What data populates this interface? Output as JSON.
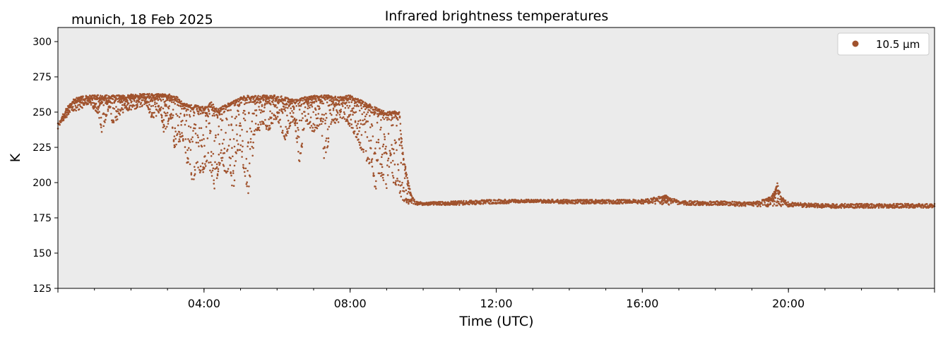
{
  "header": {
    "location_date": "munich, 18 Feb 2025"
  },
  "chart_data": {
    "type": "scatter",
    "title": "Infrared brightness temperatures",
    "xlabel": "Time (UTC)",
    "ylabel": "K",
    "ylim": [
      125,
      310
    ],
    "xlim_hours": [
      0,
      24
    ],
    "x_unit": "hours UTC",
    "x_ticks": [
      {
        "hour": 4,
        "label": "04:00"
      },
      {
        "hour": 8,
        "label": "08:00"
      },
      {
        "hour": 12,
        "label": "12:00"
      },
      {
        "hour": 16,
        "label": "16:00"
      },
      {
        "hour": 20,
        "label": "20:00"
      }
    ],
    "y_ticks": [
      125,
      150,
      175,
      200,
      225,
      250,
      275,
      300
    ],
    "grid": false,
    "background": "#ebebeb",
    "legend": {
      "placement": "top-right"
    },
    "series": [
      {
        "name": "10.5 µm",
        "color": "#a0522d",
        "upper_envelope": [
          [
            0.0,
            242
          ],
          [
            0.2,
            252
          ],
          [
            0.4,
            259
          ],
          [
            0.6,
            261
          ],
          [
            0.9,
            262
          ],
          [
            1.2,
            262
          ],
          [
            1.5,
            262
          ],
          [
            1.8,
            262
          ],
          [
            2.1,
            263
          ],
          [
            2.4,
            263
          ],
          [
            2.7,
            263
          ],
          [
            3.0,
            263
          ],
          [
            3.2,
            262
          ],
          [
            3.4,
            258
          ],
          [
            3.6,
            255
          ],
          [
            3.8,
            255
          ],
          [
            4.0,
            254
          ],
          [
            4.2,
            257
          ],
          [
            4.4,
            252
          ],
          [
            4.6,
            256
          ],
          [
            4.8,
            258
          ],
          [
            5.0,
            261
          ],
          [
            5.3,
            262
          ],
          [
            5.6,
            262
          ],
          [
            5.9,
            262
          ],
          [
            6.2,
            261
          ],
          [
            6.5,
            259
          ],
          [
            6.8,
            261
          ],
          [
            7.1,
            262
          ],
          [
            7.4,
            262
          ],
          [
            7.7,
            261
          ],
          [
            8.0,
            262
          ],
          [
            8.2,
            260
          ],
          [
            8.4,
            257
          ],
          [
            8.6,
            255
          ],
          [
            8.8,
            252
          ],
          [
            9.0,
            250
          ],
          [
            9.2,
            251
          ],
          [
            9.35,
            250
          ],
          [
            9.45,
            220
          ],
          [
            9.6,
            200
          ],
          [
            9.7,
            190
          ],
          [
            9.8,
            187
          ],
          [
            10.0,
            186
          ],
          [
            11.0,
            187
          ],
          [
            12.0,
            188
          ],
          [
            13.0,
            188
          ],
          [
            14.0,
            188
          ],
          [
            15.0,
            188
          ],
          [
            16.0,
            188
          ],
          [
            16.65,
            191
          ],
          [
            17.0,
            187
          ],
          [
            18.0,
            187
          ],
          [
            19.0,
            186
          ],
          [
            19.3,
            188
          ],
          [
            19.5,
            190
          ],
          [
            19.6,
            193
          ],
          [
            19.7,
            200
          ],
          [
            19.8,
            190
          ],
          [
            20.0,
            186
          ],
          [
            21.0,
            185
          ],
          [
            22.0,
            185
          ],
          [
            23.0,
            185
          ],
          [
            24.0,
            185
          ]
        ],
        "lower_envelope": [
          [
            0.0,
            238
          ],
          [
            0.2,
            245
          ],
          [
            0.4,
            250
          ],
          [
            0.6,
            252
          ],
          [
            0.9,
            255
          ],
          [
            1.1,
            248
          ],
          [
            1.2,
            235
          ],
          [
            1.4,
            252
          ],
          [
            1.5,
            241
          ],
          [
            1.8,
            250
          ],
          [
            2.1,
            252
          ],
          [
            2.4,
            255
          ],
          [
            2.6,
            244
          ],
          [
            2.8,
            251
          ],
          [
            2.9,
            235
          ],
          [
            3.1,
            246
          ],
          [
            3.2,
            222
          ],
          [
            3.4,
            232
          ],
          [
            3.5,
            215
          ],
          [
            3.6,
            212
          ],
          [
            3.7,
            197
          ],
          [
            3.8,
            213
          ],
          [
            3.9,
            205
          ],
          [
            4.0,
            208
          ],
          [
            4.1,
            214
          ],
          [
            4.2,
            205
          ],
          [
            4.3,
            192
          ],
          [
            4.4,
            210
          ],
          [
            4.5,
            215
          ],
          [
            4.6,
            203
          ],
          [
            4.7,
            213
          ],
          [
            4.8,
            190
          ],
          [
            4.9,
            222
          ],
          [
            5.0,
            222
          ],
          [
            5.2,
            190
          ],
          [
            5.4,
            232
          ],
          [
            5.6,
            240
          ],
          [
            5.8,
            236
          ],
          [
            6.0,
            246
          ],
          [
            6.2,
            229
          ],
          [
            6.4,
            242
          ],
          [
            6.5,
            240
          ],
          [
            6.6,
            212
          ],
          [
            6.8,
            242
          ],
          [
            7.0,
            235
          ],
          [
            7.2,
            242
          ],
          [
            7.3,
            213
          ],
          [
            7.5,
            241
          ],
          [
            7.8,
            243
          ],
          [
            8.0,
            240
          ],
          [
            8.2,
            230
          ],
          [
            8.4,
            216
          ],
          [
            8.6,
            211
          ],
          [
            8.7,
            192
          ],
          [
            8.8,
            207
          ],
          [
            8.9,
            201
          ],
          [
            9.0,
            194
          ],
          [
            9.1,
            218
          ],
          [
            9.2,
            196
          ],
          [
            9.3,
            200
          ],
          [
            9.4,
            186
          ],
          [
            9.5,
            186
          ],
          [
            9.6,
            185
          ],
          [
            9.8,
            184
          ],
          [
            10.0,
            184
          ],
          [
            11.0,
            184
          ],
          [
            12.0,
            185
          ],
          [
            13.0,
            186
          ],
          [
            14.0,
            185
          ],
          [
            15.0,
            185
          ],
          [
            16.0,
            185
          ],
          [
            17.0,
            184
          ],
          [
            18.0,
            184
          ],
          [
            19.0,
            183
          ],
          [
            20.0,
            183
          ],
          [
            21.0,
            182
          ],
          [
            22.0,
            182
          ],
          [
            23.0,
            182
          ],
          [
            24.0,
            182
          ]
        ]
      }
    ]
  }
}
